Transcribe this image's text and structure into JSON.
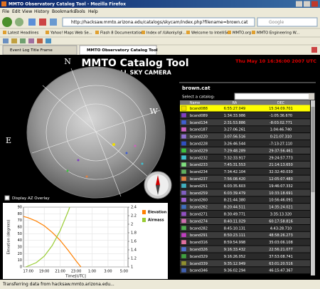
{
  "window": {
    "title": "MMTO Observatory Catalog Tool - Mozilla Firefox"
  },
  "menu": [
    "File",
    "Edit",
    "View",
    "History",
    "Bookmarks",
    "Tools",
    "Help"
  ],
  "address": "http://hacksaw.mmto.arizona.edu/catalogs/skycam/index.php?filename=brown.cat",
  "search": "Google",
  "bookmarks": [
    "Latest Headlines",
    "Yahoo! Maps Web Se...",
    "Flash 8 Documentation",
    "Index of /UAonly/lgl...",
    "Welcome to IntelliSee",
    "MMTO.org",
    "MMTO Engineering W..."
  ],
  "tabs": [
    "Event Log Title Frame",
    "MMTO Observatory Catalog Tool"
  ],
  "page": {
    "title": "MMTO Catalog Tool",
    "subtitle": "MMT ALL SKY CAMERA",
    "datetime": "Thu May 10 16:36:00 2007 UTC",
    "directions": [
      "N",
      "W",
      "E",
      "S"
    ],
    "overlay_label": "Display AZ Overlay",
    "catalog_file": "brown.cat",
    "select_label": "Select a catalog:",
    "table": {
      "columns": [
        "Name",
        "RA",
        "DEC"
      ],
      "rows": [
        {
          "name": "bcand088",
          "ra": "6:55:27.049",
          "dec": "15:34:09.701",
          "color": "#f0e000"
        },
        {
          "name": "bcand089",
          "ra": "1:34:33.986",
          "dec": "-1:05:36.670",
          "color": "#8040c0"
        },
        {
          "name": "bcand134",
          "ra": "2:31:53.886",
          "dec": "-8:03:02.771",
          "color": "#4060d0"
        },
        {
          "name": "bcand187",
          "ra": "3:27:06.261",
          "dec": "1:04:46.740",
          "color": "#d060c0"
        },
        {
          "name": "bcand220",
          "ra": "3:07:56.516",
          "dec": "0:21:07.310",
          "color": "#9070d0"
        },
        {
          "name": "bcand228",
          "ra": "3:26:46.544",
          "dec": "-7:13:27.110",
          "color": "#3050c0"
        },
        {
          "name": "bcand229",
          "ra": "7:29:48.289",
          "dec": "29:37:56.461",
          "color": "#40c040"
        },
        {
          "name": "bcand232",
          "ra": "7:32:33.917",
          "dec": "29:24:57.773",
          "color": "#40c0d0"
        },
        {
          "name": "bcand233",
          "ra": "7:45:31.553",
          "dec": "21:14:13.650",
          "color": "#80e080"
        },
        {
          "name": "bcand234",
          "ra": "7:34:42.104",
          "dec": "32:32:40.030",
          "color": "#60b060"
        },
        {
          "name": "bcand237",
          "ra": "7:56:08.420",
          "dec": "12:05:07.480",
          "color": "#e08040"
        },
        {
          "name": "bcand251",
          "ra": "6:03:35.603",
          "dec": "19:46:07.332",
          "color": "#40b0c0"
        },
        {
          "name": "bcand259",
          "ra": "6:03:39.479",
          "dec": "10:33:18.691",
          "color": "#8060c0"
        },
        {
          "name": "bcand260",
          "ra": "8:21:44.380",
          "dec": "10:56:46.091",
          "color": "#a060d0"
        },
        {
          "name": "bcand262",
          "ra": "8:20:44.511",
          "dec": "14:35:24.021",
          "color": "#4070c0"
        },
        {
          "name": "bcand271",
          "ra": "8:30:49.771",
          "dec": "3:35:13.320",
          "color": "#9050c0"
        },
        {
          "name": "bcand274",
          "ra": "8:40:11.029",
          "dec": "60:17:58.816",
          "color": "#d070b0"
        },
        {
          "name": "bcand282",
          "ra": "8:45:10.131",
          "dec": "4:43:28.710",
          "color": "#50b050"
        },
        {
          "name": "bcand291",
          "ra": "8:50:23.111",
          "dec": "48:58:26.273",
          "color": "#c040c0"
        },
        {
          "name": "bcand316",
          "ra": "8:59:54.998",
          "dec": "35:03:06.108",
          "color": "#e070a0"
        },
        {
          "name": "bcand326",
          "ra": "9:16:33.432",
          "dec": "22:56:21.077",
          "color": "#5070d0"
        },
        {
          "name": "bcand329",
          "ra": "9:16:26.052",
          "dec": "37:53:08.741",
          "color": "#40a040"
        },
        {
          "name": "bcand339",
          "ra": "9:35:12.949",
          "dec": "63:01:20.516",
          "color": "#909030"
        },
        {
          "name": "bcand346",
          "ra": "9:36:02.294",
          "dec": "46:15:47.367",
          "color": "#4060b0"
        }
      ]
    }
  },
  "plot": {
    "type": "line",
    "ylabel": "Elevation (degrees)",
    "xlabel": "Time[UTC]",
    "xlim": [
      16.4,
      29.5
    ],
    "xticks": [
      {
        "value": 17,
        "label": "17:00"
      },
      {
        "value": 19,
        "label": "19:00"
      },
      {
        "value": 21,
        "label": "21:00"
      },
      {
        "value": 23,
        "label": "23:00"
      },
      {
        "value": 25,
        "label": "1:00"
      },
      {
        "value": 27,
        "label": "3:00"
      },
      {
        "value": 29,
        "label": "5:00"
      }
    ],
    "ylim": [
      0,
      90
    ],
    "yticks": [
      0,
      10,
      20,
      30,
      40,
      50,
      60,
      70,
      80,
      90
    ],
    "y2lim": [
      1,
      2.4
    ],
    "y2ticks": [
      1,
      1.2,
      1.4,
      1.6,
      1.8,
      2,
      2.2,
      2.4
    ],
    "grid": true,
    "series": [
      {
        "name": "Elevation",
        "color": "#ff8000",
        "x": [
          16.4,
          17,
          18,
          19,
          20,
          21,
          22,
          23,
          23.6
        ],
        "values": [
          76,
          74,
          69,
          62,
          52,
          40,
          25,
          9,
          0
        ]
      },
      {
        "name": "Airmass",
        "color": "#99cc33",
        "axis": "y2",
        "x": [
          16.7,
          18,
          19,
          20,
          21,
          22,
          22.2
        ],
        "values": [
          1.0,
          1.1,
          1.25,
          1.5,
          1.85,
          2.3,
          2.4
        ]
      }
    ]
  },
  "status": "Transferring data from hacksaw.mmto.arizona.edu..."
}
